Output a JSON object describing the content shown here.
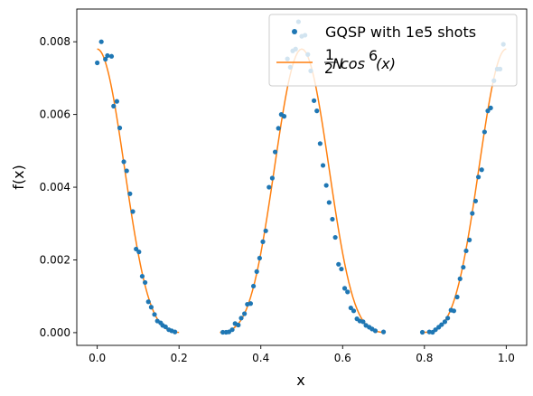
{
  "chart_data": {
    "type": "line",
    "xlabel": "x",
    "ylabel": "f(x)",
    "xlim": [
      -0.05,
      1.05
    ],
    "ylim": [
      -0.00035,
      0.0089
    ],
    "xticks": [
      0.0,
      0.2,
      0.4,
      0.6,
      0.8,
      1.0
    ],
    "xtick_labels": [
      "0.0",
      "0.2",
      "0.4",
      "0.6",
      "0.8",
      "1.0"
    ],
    "yticks": [
      0.0,
      0.002,
      0.004,
      0.006,
      0.008
    ],
    "ytick_labels": [
      "0.000",
      "0.002",
      "0.004",
      "0.006",
      "0.008"
    ],
    "grid": false,
    "legend": {
      "placement": "top-right",
      "entries": [
        {
          "label": "GQSP with 1e5 shots",
          "marker": "dot",
          "color": "#1f77b4"
        },
        {
          "label_prefix_num": "1",
          "label_prefix_den": "2",
          "label_prefix_den_exp": "N",
          "label_func": "cos",
          "label_func_exp": "6",
          "label_arg": "(x)",
          "marker": "line",
          "color": "#ff7f0e"
        }
      ]
    },
    "series": [
      {
        "name": "GQSP with 1e5 shots",
        "kind": "scatter",
        "color": "#1f77b4",
        "points": [
          [
            0.0,
            0.00742
          ],
          [
            0.01,
            0.008
          ],
          [
            0.02,
            0.00752
          ],
          [
            0.025,
            0.00762
          ],
          [
            0.035,
            0.0076
          ],
          [
            0.04,
            0.00623
          ],
          [
            0.048,
            0.00636
          ],
          [
            0.055,
            0.00563
          ],
          [
            0.065,
            0.0047
          ],
          [
            0.072,
            0.00445
          ],
          [
            0.08,
            0.00382
          ],
          [
            0.087,
            0.00333
          ],
          [
            0.095,
            0.0023
          ],
          [
            0.102,
            0.00222
          ],
          [
            0.11,
            0.00155
          ],
          [
            0.117,
            0.00138
          ],
          [
            0.125,
            0.00085
          ],
          [
            0.132,
            0.0007
          ],
          [
            0.14,
            0.0005
          ],
          [
            0.147,
            0.00032
          ],
          [
            0.155,
            0.00027
          ],
          [
            0.16,
            0.0002
          ],
          [
            0.167,
            0.00016
          ],
          [
            0.175,
            8e-05
          ],
          [
            0.182,
            5e-05
          ],
          [
            0.19,
            2e-05
          ],
          [
            0.307,
            1e-05
          ],
          [
            0.315,
            1e-05
          ],
          [
            0.322,
            2e-05
          ],
          [
            0.33,
            8e-05
          ],
          [
            0.337,
            0.00025
          ],
          [
            0.345,
            0.00021
          ],
          [
            0.352,
            0.0004
          ],
          [
            0.36,
            0.00052
          ],
          [
            0.367,
            0.00078
          ],
          [
            0.375,
            0.0008
          ],
          [
            0.382,
            0.00128
          ],
          [
            0.39,
            0.00168
          ],
          [
            0.397,
            0.00205
          ],
          [
            0.405,
            0.0025
          ],
          [
            0.412,
            0.0028
          ],
          [
            0.42,
            0.004
          ],
          [
            0.428,
            0.00425
          ],
          [
            0.435,
            0.00497
          ],
          [
            0.443,
            0.00562
          ],
          [
            0.45,
            0.006
          ],
          [
            0.457,
            0.00595
          ],
          [
            0.465,
            0.00753
          ],
          [
            0.472,
            0.0073
          ],
          [
            0.478,
            0.00775
          ],
          [
            0.485,
            0.0078
          ],
          [
            0.492,
            0.00855
          ],
          [
            0.5,
            0.00815
          ],
          [
            0.508,
            0.00818
          ],
          [
            0.515,
            0.00765
          ],
          [
            0.522,
            0.0072
          ],
          [
            0.53,
            0.00638
          ],
          [
            0.537,
            0.0061
          ],
          [
            0.545,
            0.0052
          ],
          [
            0.552,
            0.0046
          ],
          [
            0.56,
            0.00405
          ],
          [
            0.567,
            0.00358
          ],
          [
            0.575,
            0.00312
          ],
          [
            0.582,
            0.00262
          ],
          [
            0.59,
            0.00188
          ],
          [
            0.597,
            0.00175
          ],
          [
            0.605,
            0.00122
          ],
          [
            0.612,
            0.00112
          ],
          [
            0.62,
            0.00068
          ],
          [
            0.627,
            0.0006
          ],
          [
            0.635,
            0.00038
          ],
          [
            0.642,
            0.00032
          ],
          [
            0.65,
            0.0003
          ],
          [
            0.657,
            0.0002
          ],
          [
            0.665,
            0.00015
          ],
          [
            0.672,
            0.0001
          ],
          [
            0.68,
            5e-05
          ],
          [
            0.7,
            2e-05
          ],
          [
            0.795,
            1e-05
          ],
          [
            0.812,
            2e-05
          ],
          [
            0.82,
            1e-05
          ],
          [
            0.827,
            8e-05
          ],
          [
            0.835,
            0.00015
          ],
          [
            0.842,
            0.00022
          ],
          [
            0.85,
            0.0003
          ],
          [
            0.857,
            0.0004
          ],
          [
            0.865,
            0.00062
          ],
          [
            0.872,
            0.0006
          ],
          [
            0.88,
            0.00098
          ],
          [
            0.887,
            0.00148
          ],
          [
            0.895,
            0.0018
          ],
          [
            0.902,
            0.00225
          ],
          [
            0.91,
            0.00255
          ],
          [
            0.917,
            0.00328
          ],
          [
            0.925,
            0.00362
          ],
          [
            0.932,
            0.00428
          ],
          [
            0.94,
            0.00448
          ],
          [
            0.947,
            0.00552
          ],
          [
            0.955,
            0.0061
          ],
          [
            0.962,
            0.00618
          ],
          [
            0.97,
            0.00693
          ],
          [
            0.978,
            0.00725
          ],
          [
            0.985,
            0.00725
          ],
          [
            0.993,
            0.00793
          ]
        ]
      },
      {
        "name": "1/2^N cos^6(x)",
        "kind": "line",
        "color": "#ff7f0e",
        "function": "0.0078*cos(2*pi*x)^6 for x in [0,0.2]U[0.3,0.7]U[0.8,1.0]",
        "amplitude": 0.0078,
        "segments": [
          [
            0.0,
            0.2
          ],
          [
            0.3,
            0.7
          ],
          [
            0.8,
            1.0
          ]
        ]
      }
    ]
  }
}
